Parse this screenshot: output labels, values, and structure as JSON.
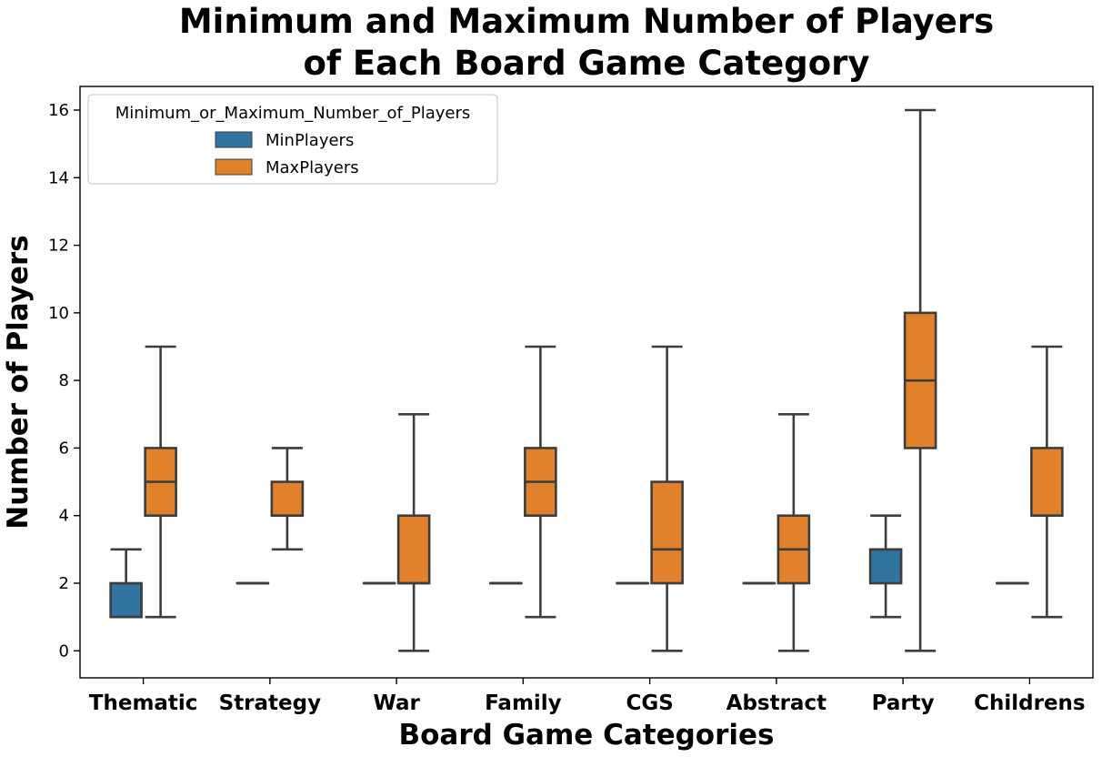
{
  "chart_data": {
    "type": "boxplot",
    "title_lines": [
      "Minimum and Maximum Number of Players",
      "of Each Board Game Category"
    ],
    "xlabel": "Board Game Categories",
    "ylabel": "Number of Players",
    "ylim": [
      -0.8,
      16.7
    ],
    "yticks": [
      0,
      2,
      4,
      6,
      8,
      10,
      12,
      14,
      16
    ],
    "grid": false,
    "categories": [
      "Thematic",
      "Strategy",
      "War",
      "Family",
      "CGS",
      "Abstract",
      "Party",
      "Childrens"
    ],
    "legend": {
      "title": "Minimum_or_Maximum_Number_of_Players",
      "placement": "top-left"
    },
    "series": [
      {
        "name": "MinPlayers",
        "color": "#3274a1",
        "boxes": [
          {
            "whislo": 1,
            "q1": 1,
            "med": 1,
            "q3": 2,
            "whishi": 3
          },
          {
            "whislo": 2,
            "q1": 2,
            "med": 2,
            "q3": 2,
            "whishi": 2
          },
          {
            "whislo": 2,
            "q1": 2,
            "med": 2,
            "q3": 2,
            "whishi": 2
          },
          {
            "whislo": 2,
            "q1": 2,
            "med": 2,
            "q3": 2,
            "whishi": 2
          },
          {
            "whislo": 2,
            "q1": 2,
            "med": 2,
            "q3": 2,
            "whishi": 2
          },
          {
            "whislo": 2,
            "q1": 2,
            "med": 2,
            "q3": 2,
            "whishi": 2
          },
          {
            "whislo": 1,
            "q1": 2,
            "med": 3,
            "q3": 3,
            "whishi": 4
          },
          {
            "whislo": 2,
            "q1": 2,
            "med": 2,
            "q3": 2,
            "whishi": 2
          }
        ]
      },
      {
        "name": "MaxPlayers",
        "color": "#e1812c",
        "boxes": [
          {
            "whislo": 1,
            "q1": 4,
            "med": 5,
            "q3": 6,
            "whishi": 9
          },
          {
            "whislo": 3,
            "q1": 4,
            "med": 4,
            "q3": 5,
            "whishi": 6
          },
          {
            "whislo": 0,
            "q1": 2,
            "med": 2,
            "q3": 4,
            "whishi": 7
          },
          {
            "whislo": 1,
            "q1": 4,
            "med": 5,
            "q3": 6,
            "whishi": 9
          },
          {
            "whislo": 0,
            "q1": 2,
            "med": 3,
            "q3": 5,
            "whishi": 9
          },
          {
            "whislo": 0,
            "q1": 2,
            "med": 3,
            "q3": 4,
            "whishi": 7
          },
          {
            "whislo": 0,
            "q1": 6,
            "med": 8,
            "q3": 10,
            "whishi": 16
          },
          {
            "whislo": 1,
            "q1": 4,
            "med": 4,
            "q3": 6,
            "whishi": 9
          }
        ]
      }
    ]
  }
}
